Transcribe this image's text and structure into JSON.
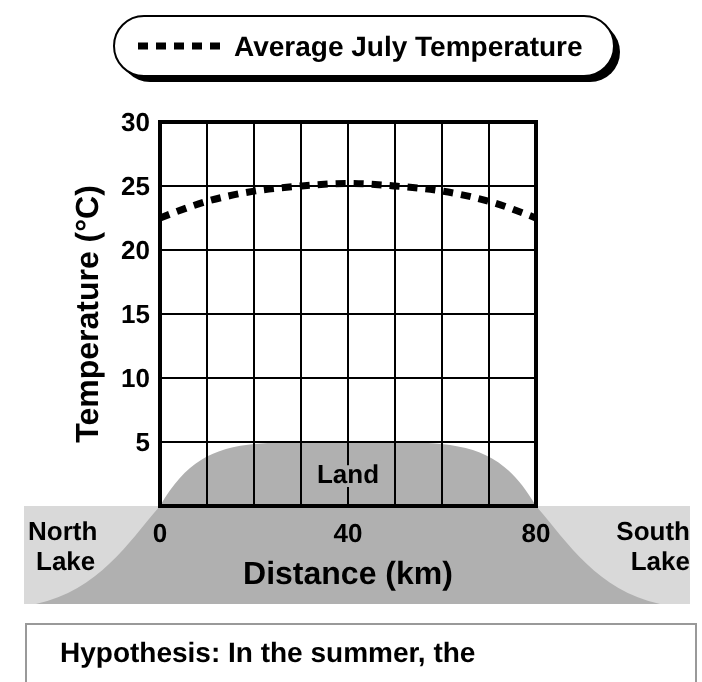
{
  "chart_data": {
    "type": "line",
    "xlabel": "Distance (km)",
    "ylabel": "Temperature (°C)",
    "x": [
      0,
      10,
      20,
      30,
      40,
      50,
      60,
      70,
      80
    ],
    "series": [
      {
        "name": "Average July Temperature",
        "color": "#000000",
        "values": [
          22.5,
          23.8,
          24.6,
          25.0,
          25.2,
          25.0,
          24.6,
          23.8,
          22.5
        ]
      }
    ],
    "xlim": [
      0,
      80
    ],
    "xticks": [
      0,
      {
        "value": 10,
        "label": null
      },
      {
        "value": 20,
        "label": null
      },
      {
        "value": 30,
        "label": null
      },
      40,
      {
        "value": 50,
        "label": null
      },
      {
        "value": 60,
        "label": null
      },
      {
        "value": 70,
        "label": null
      },
      80
    ],
    "ylim": [
      0,
      30
    ],
    "yticks": [
      {
        "value": 0,
        "label": null
      },
      5,
      10,
      15,
      20,
      25,
      30
    ],
    "grid": true,
    "legend": "top",
    "line_style": "dashed",
    "annotations": [
      "Land",
      "North Lake",
      "South Lake",
      "Hypothesis: In the summer, the"
    ]
  }
}
